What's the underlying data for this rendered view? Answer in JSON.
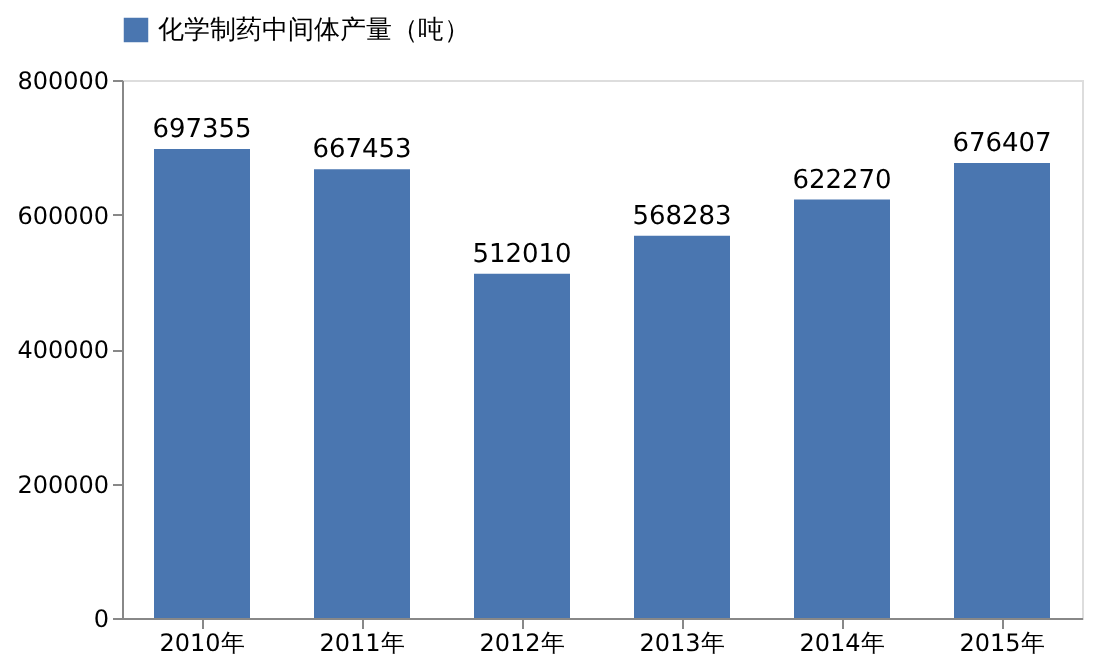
{
  "chart_data": {
    "type": "bar",
    "categories": [
      "2010年",
      "2011年",
      "2012年",
      "2013年",
      "2014年",
      "2015年"
    ],
    "series": [
      {
        "name": "化学制药中间体产量（吨）",
        "color": "#4a76b0",
        "values": [
          697355,
          667453,
          512010,
          568283,
          622270,
          676407
        ]
      }
    ],
    "ylim": [
      0,
      800000
    ],
    "yticks": [
      0,
      200000,
      400000,
      600000,
      800000
    ],
    "data_labels": true,
    "legend": "top",
    "grid": false
  }
}
